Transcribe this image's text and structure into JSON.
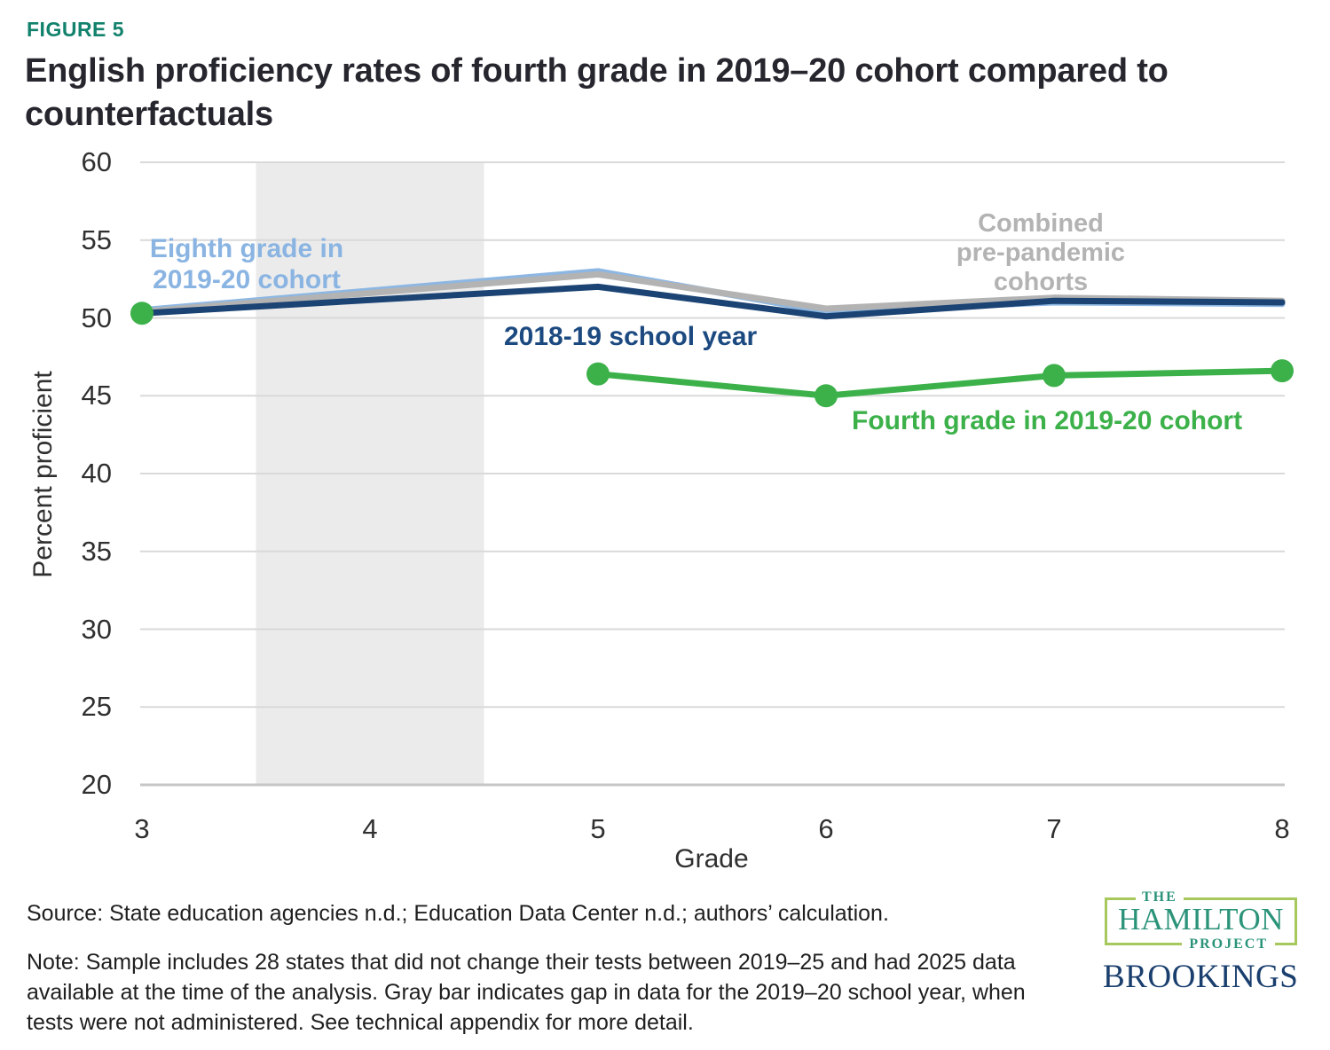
{
  "figure_label": "FIGURE 5",
  "title": "English proficiency rates of fourth grade in 2019–20 cohort compared to counterfactuals",
  "colors": {
    "figure_label": "#12826D",
    "title_text": "#26262E",
    "light_blue_series": "#8DB7E2",
    "gray_series": "#B3B3B3",
    "navy_series": "#1B4373",
    "navy_label": "#1C4A80",
    "green_series": "#3CB14A",
    "gap_band": "#EBEBEB",
    "gridline": "#D9D9D9",
    "baseline": "#C6C6C6",
    "hamilton_teal": "#2A9379",
    "hamilton_border": "#A6C85C",
    "brookings_navy": "#1A3F6E"
  },
  "chart_data": {
    "type": "line",
    "xlabel": "Grade",
    "ylabel": "Percent proficient",
    "x_ticks": [
      3,
      4,
      5,
      6,
      7,
      8
    ],
    "y_ticks": [
      20,
      25,
      30,
      35,
      40,
      45,
      50,
      55,
      60
    ],
    "xlim": [
      3,
      8
    ],
    "ylim": [
      20,
      60
    ],
    "grid": true,
    "legend": "direct-labels",
    "gap_band": {
      "x_start": 3.5,
      "x_end": 4.5,
      "meaning": "gap in data for the 2019–20 school year"
    },
    "series": [
      {
        "name": "Eighth grade in 2019-20 cohort",
        "color": "#8DB7E2",
        "width": 7,
        "markers": false,
        "x": [
          3,
          5,
          6,
          7,
          8
        ],
        "y": [
          50.5,
          53.0,
          50.4,
          51.0,
          50.9
        ]
      },
      {
        "name": "Combined pre-pandemic cohorts",
        "color": "#B3B3B3",
        "width": 7,
        "markers": false,
        "x": [
          3,
          5,
          6,
          7,
          8
        ],
        "y": [
          50.4,
          52.8,
          50.6,
          51.3,
          51.1
        ]
      },
      {
        "name": "2018-19 school year",
        "color": "#1B4373",
        "width": 7,
        "markers": false,
        "x": [
          3,
          5,
          6,
          7,
          8
        ],
        "y": [
          50.3,
          52.0,
          50.1,
          51.1,
          51.0
        ]
      },
      {
        "name": "Fourth grade in 2019-20 cohort",
        "color": "#3CB14A",
        "width": 7,
        "markers": true,
        "marker_radius": 13,
        "gap_after_first_point": true,
        "x": [
          3,
          5,
          6,
          7,
          8
        ],
        "y": [
          50.3,
          46.4,
          45.0,
          46.3,
          46.6
        ]
      }
    ]
  },
  "annotations": {
    "eighth": {
      "text": "Eighth grade in\n2019-20 cohort"
    },
    "school_year": {
      "text": "2018-19 school year"
    },
    "prepandemic": {
      "text": "Combined\npre-pandemic\ncohorts"
    },
    "fourth": {
      "text": "Fourth grade in 2019-20 cohort"
    }
  },
  "footer": {
    "source": "Source: State education agencies n.d.; Education Data Center n.d.; authors’ calculation.",
    "note": "Note: Sample includes 28 states that did not change their tests between 2019–25 and had 2025 data available at the time of the analysis. Gray bar indicates gap in data for the 2019–20 school year, when tests were not administered. See technical appendix for more detail."
  },
  "logos": {
    "hamilton": {
      "the": "THE",
      "name": "HAMILTON",
      "project": "PROJECT"
    },
    "brookings": "BROOKINGS"
  }
}
